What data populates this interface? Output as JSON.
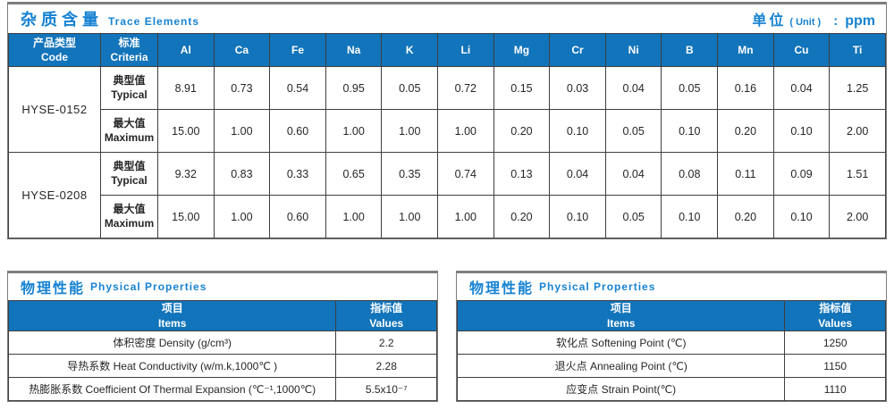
{
  "colors": {
    "header_blue": "#1274ba",
    "title_blue": "#1682d2",
    "frame_gray": "#7d7d7d",
    "grid_dark": "#3f3f3f"
  },
  "trace_table": {
    "title_cn": "杂质含量",
    "title_en": "Trace Elements",
    "unit_cn": "单位",
    "unit_paren": "( Unit )",
    "unit_colon": ":",
    "unit_value": "ppm",
    "col_product_cn": "产品类型",
    "col_product_en": "Code",
    "col_criteria_cn": "标准",
    "col_criteria_en": "Criteria",
    "elements": [
      "Al",
      "Ca",
      "Fe",
      "Na",
      "K",
      "Li",
      "Mg",
      "Cr",
      "Ni",
      "B",
      "Mn",
      "Cu",
      "Ti"
    ],
    "products": [
      {
        "code": "HYSE-0152",
        "rows": [
          {
            "criteria_cn": "典型值",
            "criteria_en": "Typical",
            "values": [
              "8.91",
              "0.73",
              "0.54",
              "0.95",
              "0.05",
              "0.72",
              "0.15",
              "0.03",
              "0.04",
              "0.05",
              "0.16",
              "0.04",
              "1.25"
            ]
          },
          {
            "criteria_cn": "最大值",
            "criteria_en": "Maximum",
            "values": [
              "15.00",
              "1.00",
              "0.60",
              "1.00",
              "1.00",
              "1.00",
              "0.20",
              "0.10",
              "0.05",
              "0.10",
              "0.20",
              "0.10",
              "2.00"
            ]
          }
        ]
      },
      {
        "code": "HYSE-0208",
        "rows": [
          {
            "criteria_cn": "典型值",
            "criteria_en": "Typical",
            "values": [
              "9.32",
              "0.83",
              "0.33",
              "0.65",
              "0.35",
              "0.74",
              "0.13",
              "0.04",
              "0.04",
              "0.08",
              "0.11",
              "0.09",
              "1.51"
            ]
          },
          {
            "criteria_cn": "最大值",
            "criteria_en": "Maximum",
            "values": [
              "15.00",
              "1.00",
              "0.60",
              "1.00",
              "1.00",
              "1.00",
              "0.20",
              "0.10",
              "0.05",
              "0.10",
              "0.20",
              "0.10",
              "2.00"
            ]
          }
        ]
      }
    ]
  },
  "physical_left": {
    "title_cn": "物理性能",
    "title_en": "Physical Properties",
    "col_items_cn": "项目",
    "col_items_en": "Items",
    "col_values_cn": "指标值",
    "col_values_en": "Values",
    "rows": [
      {
        "item": "体积密度 Density (g/cm³)",
        "value": "2.2"
      },
      {
        "item": "导热系数 Heat Conductivity (w/m.k,1000℃ )",
        "value": "2.28"
      },
      {
        "item": "热膨胀系数 Coefficient Of Thermal Expansion (℃⁻¹,1000℃)",
        "value": "5.5x10⁻⁷"
      }
    ]
  },
  "physical_right": {
    "title_cn": "物理性能",
    "title_en": "Physical Properties",
    "col_items_cn": "项目",
    "col_items_en": "Items",
    "col_values_cn": "指标值",
    "col_values_en": "Values",
    "rows": [
      {
        "item": "软化点 Softening Point (℃)",
        "value": "1250"
      },
      {
        "item": "退火点 Annealing Point (℃)",
        "value": "1150"
      },
      {
        "item": "应变点 Strain Point(℃)",
        "value": "1110"
      }
    ]
  }
}
